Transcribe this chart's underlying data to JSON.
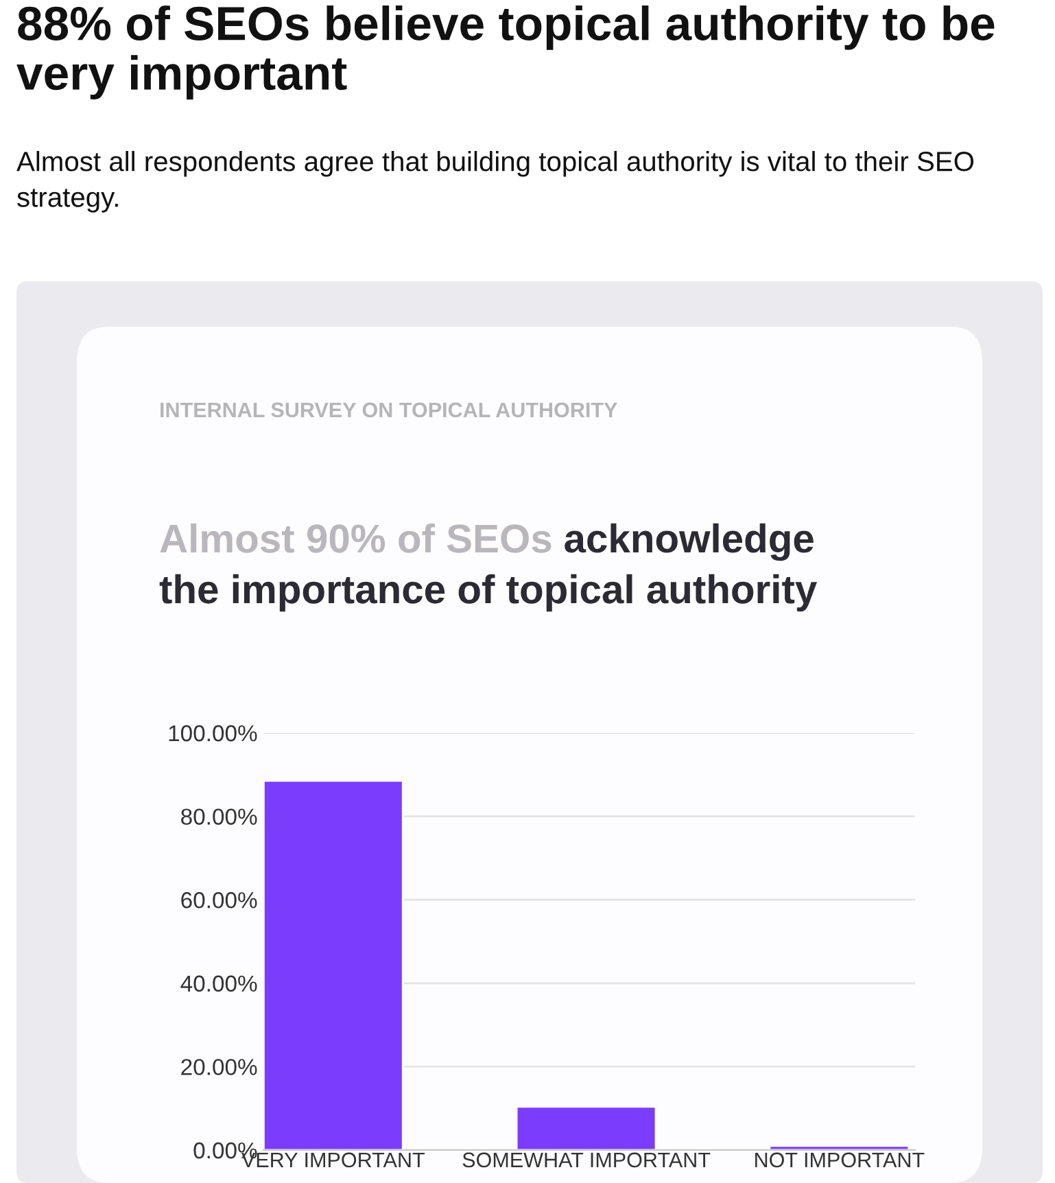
{
  "chart_data": {
    "type": "bar",
    "title": "88% of SEOs believe topical authority to be very important",
    "subtitle": "Almost all respondents agree that building topical authority is vital to their SEO strategy.",
    "annotations": [
      "INTERNAL SURVEY ON TOPICAL AUTHORITY",
      "Almost 90% of SEOs",
      "acknowledge the importance of topical authority"
    ],
    "categories": [
      "VERY IMPORTANT",
      "SOMEWHAT IMPORTANT",
      "NOT IMPORTANT"
    ],
    "values": [
      88.5,
      10.4,
      1.0
    ],
    "color": "#7b3cfc",
    "ylim": [
      0,
      100
    ],
    "yticks": [
      {
        "value": 0,
        "label": "0.00%"
      },
      {
        "value": 20,
        "label": "20.00%"
      },
      {
        "value": 40,
        "label": "40.00%"
      },
      {
        "value": 60,
        "label": "60.00%"
      },
      {
        "value": 80,
        "label": "80.00%"
      },
      {
        "value": 100,
        "label": "100.00%"
      }
    ],
    "grid": "y",
    "legend": false
  }
}
